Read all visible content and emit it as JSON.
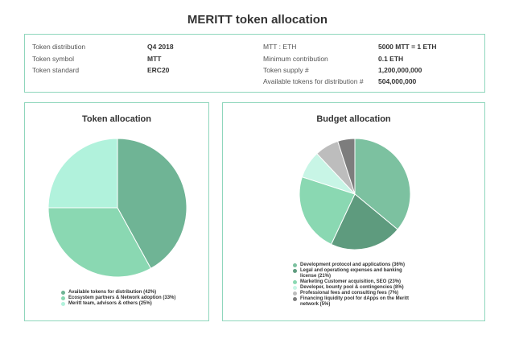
{
  "title": "MERITT token allocation",
  "info": {
    "left": [
      {
        "label": "Token distribution",
        "value": "Q4 2018"
      },
      {
        "label": "Token symbol",
        "value": "MTT"
      },
      {
        "label": "Token standard",
        "value": "ERC20"
      }
    ],
    "right": [
      {
        "label": "MTT : ETH",
        "value": "5000 MTT = 1 ETH"
      },
      {
        "label": "Minimum contribution",
        "value": "0.1 ETH"
      },
      {
        "label": "Token supply #",
        "value": "1,200,000,000"
      },
      {
        "label": "Available tokens for distribution #",
        "value": "504,000,000"
      }
    ]
  },
  "chart_data": [
    {
      "type": "pie",
      "title": "Token allocation",
      "legend_position": "bottom",
      "slices": [
        {
          "label": "Available tokens for distribution (42%)",
          "value": 42,
          "color": "#6fb495"
        },
        {
          "label": "Ecosystem partners & Network adoption (33%)",
          "value": 33,
          "color": "#8ad8b2"
        },
        {
          "label": "Meritt team, advisors & others (25%)",
          "value": 25,
          "color": "#b1f2dc"
        }
      ]
    },
    {
      "type": "pie",
      "title": "Budget allocation",
      "legend_position": "bottom",
      "slices": [
        {
          "label": "Development protocol and applications (36%)",
          "value": 36,
          "color": "#7cc1a0"
        },
        {
          "label": "Legal and operationg expenses and banking license (21%)",
          "value": 21,
          "color": "#5e9b7e"
        },
        {
          "label": "Marketing Customer acquisition, SEO (23%)",
          "value": 23,
          "color": "#8ad8b2"
        },
        {
          "label": "Developer, bounty pool & contingencies (8%)",
          "value": 8,
          "color": "#c8f5e6"
        },
        {
          "label": "Professional fees and consulting fees (7%)",
          "value": 7,
          "color": "#bdbdbd"
        },
        {
          "label": "Financing liquidity pool for dApps on the Meritt network (5%)",
          "value": 5,
          "color": "#7d7d7d"
        }
      ]
    }
  ]
}
